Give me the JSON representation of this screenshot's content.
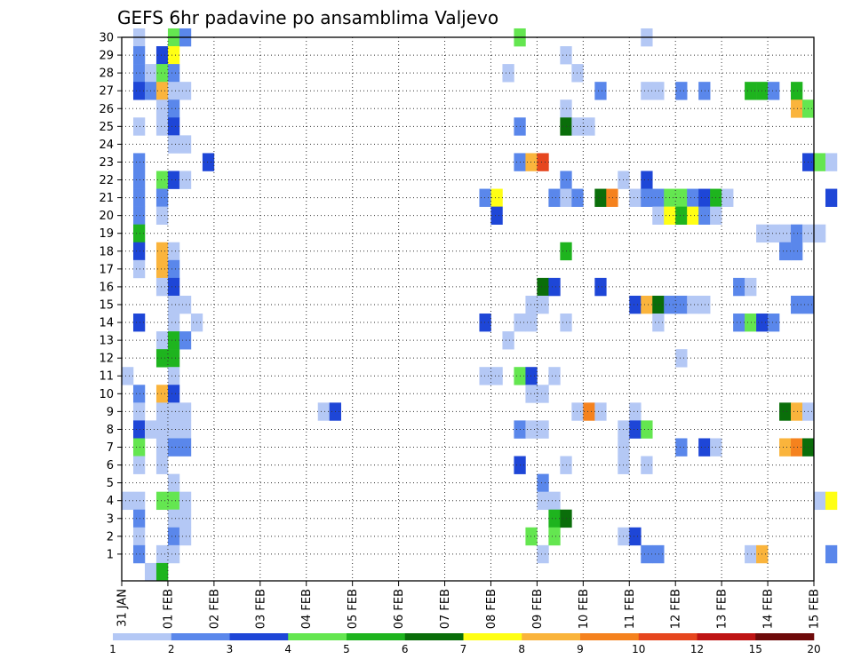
{
  "chart_data": {
    "type": "heatmap",
    "title": "GEFS 6hr padavine po ansamblima Valjevo",
    "xlabel": "",
    "ylabel": "",
    "x_ticks": [
      "31 JAN",
      "01 FEB",
      "02 FEB",
      "03 FEB",
      "04 FEB",
      "05 FEB",
      "06 FEB",
      "07 FEB",
      "08 FEB",
      "09 FEB",
      "10 FEB",
      "11 FEB",
      "12 FEB",
      "13 FEB",
      "14 FEB",
      "15 FEB"
    ],
    "y_ticks": [
      1,
      2,
      3,
      4,
      5,
      6,
      7,
      8,
      9,
      10,
      11,
      12,
      13,
      14,
      15,
      16,
      17,
      18,
      19,
      20,
      21,
      22,
      23,
      24,
      25,
      26,
      27,
      28,
      29,
      30
    ],
    "time_steps_per_day": 4,
    "grid": "dotted",
    "colorbar": {
      "position": "bottom",
      "labels": [
        "1",
        "2",
        "3",
        "4",
        "5",
        "6",
        "7",
        "8",
        "9",
        "10",
        "12",
        "15",
        "20"
      ],
      "colors": [
        "#b4c8f5",
        "#5a87eb",
        "#1e46d7",
        "#64e650",
        "#1eb41e",
        "#0a6e0a",
        "#ffff14",
        "#fab43c",
        "#f5821e",
        "#e6461e",
        "#be1414",
        "#6e0a0a"
      ]
    },
    "cells_format": "[time_index, member, color_index] (time_index 0 = 31 JAN 00h, 6-hour steps; color_index into colorbar.colors)",
    "cells": [
      [
        1,
        30,
        0
      ],
      [
        1,
        29,
        1
      ],
      [
        1,
        28,
        1
      ],
      [
        1,
        27,
        2
      ],
      [
        1,
        25,
        0
      ],
      [
        1,
        23,
        1
      ],
      [
        1,
        22,
        1
      ],
      [
        1,
        21,
        1
      ],
      [
        1,
        20,
        1
      ],
      [
        1,
        19,
        4
      ],
      [
        1,
        18,
        2
      ],
      [
        1,
        17,
        0
      ],
      [
        1,
        14,
        2
      ],
      [
        1,
        10,
        1
      ],
      [
        1,
        9,
        0
      ],
      [
        1,
        8,
        2
      ],
      [
        1,
        7,
        3
      ],
      [
        1,
        6,
        0
      ],
      [
        1,
        4,
        0
      ],
      [
        1,
        3,
        1
      ],
      [
        1,
        2,
        0
      ],
      [
        1,
        1,
        1
      ],
      [
        0,
        11,
        0
      ],
      [
        0,
        4,
        0
      ],
      [
        2,
        28,
        0
      ],
      [
        2,
        27,
        1
      ],
      [
        2,
        8,
        0
      ],
      [
        2,
        0,
        0
      ],
      [
        3,
        29,
        2
      ],
      [
        3,
        28,
        3
      ],
      [
        3,
        27,
        7
      ],
      [
        3,
        26,
        0
      ],
      [
        3,
        25,
        0
      ],
      [
        3,
        22,
        3
      ],
      [
        3,
        21,
        1
      ],
      [
        3,
        20,
        0
      ],
      [
        3,
        18,
        7
      ],
      [
        3,
        17,
        7
      ],
      [
        3,
        16,
        0
      ],
      [
        3,
        13,
        0
      ],
      [
        3,
        12,
        4
      ],
      [
        3,
        10,
        7
      ],
      [
        3,
        9,
        0
      ],
      [
        3,
        8,
        0
      ],
      [
        3,
        7,
        0
      ],
      [
        3,
        6,
        0
      ],
      [
        3,
        4,
        3
      ],
      [
        3,
        1,
        0
      ],
      [
        3,
        0,
        4
      ],
      [
        4,
        30,
        3
      ],
      [
        4,
        29,
        6
      ],
      [
        4,
        28,
        1
      ],
      [
        4,
        27,
        0
      ],
      [
        4,
        26,
        1
      ],
      [
        4,
        25,
        2
      ],
      [
        4,
        24,
        0
      ],
      [
        4,
        22,
        2
      ],
      [
        4,
        18,
        0
      ],
      [
        4,
        17,
        1
      ],
      [
        4,
        16,
        2
      ],
      [
        4,
        15,
        0
      ],
      [
        4,
        14,
        0
      ],
      [
        4,
        13,
        4
      ],
      [
        4,
        12,
        4
      ],
      [
        4,
        11,
        0
      ],
      [
        4,
        10,
        2
      ],
      [
        4,
        9,
        0
      ],
      [
        4,
        8,
        0
      ],
      [
        4,
        7,
        1
      ],
      [
        4,
        5,
        0
      ],
      [
        4,
        4,
        3
      ],
      [
        4,
        3,
        0
      ],
      [
        4,
        2,
        1
      ],
      [
        4,
        1,
        0
      ],
      [
        5,
        30,
        1
      ],
      [
        5,
        27,
        0
      ],
      [
        5,
        24,
        0
      ],
      [
        5,
        22,
        0
      ],
      [
        5,
        15,
        0
      ],
      [
        5,
        13,
        1
      ],
      [
        5,
        9,
        0
      ],
      [
        5,
        8,
        0
      ],
      [
        5,
        7,
        1
      ],
      [
        5,
        4,
        0
      ],
      [
        5,
        3,
        0
      ],
      [
        5,
        2,
        0
      ],
      [
        6,
        14,
        0
      ],
      [
        7,
        23,
        2
      ],
      [
        17,
        9,
        0
      ],
      [
        18,
        9,
        2
      ],
      [
        31,
        21,
        1
      ],
      [
        31,
        14,
        2
      ],
      [
        31,
        11,
        0
      ],
      [
        32,
        21,
        6
      ],
      [
        32,
        20,
        2
      ],
      [
        32,
        11,
        0
      ],
      [
        33,
        28,
        0
      ],
      [
        33,
        13,
        0
      ],
      [
        34,
        30,
        3
      ],
      [
        34,
        25,
        1
      ],
      [
        34,
        23,
        1
      ],
      [
        34,
        14,
        0
      ],
      [
        34,
        11,
        3
      ],
      [
        34,
        8,
        1
      ],
      [
        34,
        6,
        2
      ],
      [
        35,
        23,
        7
      ],
      [
        35,
        15,
        0
      ],
      [
        35,
        14,
        0
      ],
      [
        35,
        11,
        2
      ],
      [
        35,
        10,
        0
      ],
      [
        35,
        8,
        0
      ],
      [
        35,
        2,
        3
      ],
      [
        36,
        23,
        9
      ],
      [
        36,
        16,
        5
      ],
      [
        36,
        15,
        0
      ],
      [
        36,
        10,
        0
      ],
      [
        36,
        8,
        0
      ],
      [
        36,
        5,
        1
      ],
      [
        36,
        4,
        0
      ],
      [
        36,
        1,
        0
      ],
      [
        37,
        21,
        1
      ],
      [
        37,
        16,
        2
      ],
      [
        37,
        11,
        0
      ],
      [
        37,
        4,
        0
      ],
      [
        37,
        3,
        4
      ],
      [
        37,
        2,
        3
      ],
      [
        38,
        29,
        0
      ],
      [
        38,
        26,
        0
      ],
      [
        38,
        25,
        5
      ],
      [
        38,
        22,
        1
      ],
      [
        38,
        21,
        0
      ],
      [
        38,
        18,
        4
      ],
      [
        38,
        14,
        0
      ],
      [
        38,
        6,
        0
      ],
      [
        38,
        3,
        5
      ],
      [
        39,
        28,
        0
      ],
      [
        39,
        25,
        0
      ],
      [
        39,
        21,
        1
      ],
      [
        39,
        9,
        0
      ],
      [
        40,
        25,
        0
      ],
      [
        40,
        9,
        8
      ],
      [
        41,
        27,
        1
      ],
      [
        41,
        21,
        5
      ],
      [
        41,
        16,
        2
      ],
      [
        41,
        9,
        0
      ],
      [
        42,
        21,
        8
      ],
      [
        43,
        22,
        0
      ],
      [
        43,
        8,
        0
      ],
      [
        43,
        7,
        0
      ],
      [
        43,
        6,
        0
      ],
      [
        43,
        2,
        0
      ],
      [
        44,
        21,
        0
      ],
      [
        44,
        15,
        2
      ],
      [
        44,
        9,
        0
      ],
      [
        44,
        8,
        2
      ],
      [
        44,
        2,
        2
      ],
      [
        45,
        30,
        0
      ],
      [
        45,
        27,
        0
      ],
      [
        45,
        22,
        2
      ],
      [
        45,
        21,
        1
      ],
      [
        45,
        15,
        7
      ],
      [
        45,
        8,
        3
      ],
      [
        45,
        6,
        0
      ],
      [
        45,
        1,
        1
      ],
      [
        46,
        27,
        0
      ],
      [
        46,
        21,
        1
      ],
      [
        46,
        20,
        0
      ],
      [
        46,
        15,
        5
      ],
      [
        46,
        14,
        0
      ],
      [
        46,
        1,
        1
      ],
      [
        47,
        21,
        3
      ],
      [
        47,
        20,
        6
      ],
      [
        47,
        15,
        1
      ],
      [
        48,
        27,
        1
      ],
      [
        48,
        21,
        3
      ],
      [
        48,
        20,
        4
      ],
      [
        48,
        15,
        1
      ],
      [
        48,
        12,
        0
      ],
      [
        48,
        7,
        1
      ],
      [
        49,
        21,
        1
      ],
      [
        49,
        20,
        6
      ],
      [
        49,
        15,
        0
      ],
      [
        50,
        27,
        1
      ],
      [
        50,
        21,
        2
      ],
      [
        50,
        20,
        1
      ],
      [
        50,
        15,
        0
      ],
      [
        50,
        7,
        2
      ],
      [
        51,
        21,
        4
      ],
      [
        51,
        20,
        0
      ],
      [
        51,
        7,
        0
      ],
      [
        52,
        21,
        0
      ],
      [
        53,
        16,
        1
      ],
      [
        53,
        14,
        1
      ],
      [
        54,
        27,
        4
      ],
      [
        54,
        16,
        0
      ],
      [
        54,
        14,
        3
      ],
      [
        54,
        1,
        0
      ],
      [
        55,
        27,
        4
      ],
      [
        55,
        19,
        0
      ],
      [
        55,
        14,
        2
      ],
      [
        55,
        1,
        7
      ],
      [
        56,
        27,
        1
      ],
      [
        56,
        19,
        0
      ],
      [
        56,
        14,
        1
      ],
      [
        57,
        19,
        0
      ],
      [
        57,
        18,
        1
      ],
      [
        57,
        9,
        5
      ],
      [
        57,
        7,
        7
      ],
      [
        58,
        27,
        4
      ],
      [
        58,
        26,
        7
      ],
      [
        58,
        19,
        1
      ],
      [
        58,
        18,
        1
      ],
      [
        58,
        15,
        1
      ],
      [
        58,
        9,
        7
      ],
      [
        58,
        7,
        8
      ],
      [
        59,
        26,
        3
      ],
      [
        59,
        23,
        2
      ],
      [
        59,
        19,
        0
      ],
      [
        59,
        15,
        1
      ],
      [
        59,
        9,
        0
      ],
      [
        59,
        7,
        5
      ],
      [
        60,
        23,
        3
      ],
      [
        60,
        19,
        0
      ],
      [
        60,
        4,
        0
      ],
      [
        61,
        23,
        0
      ],
      [
        61,
        21,
        2
      ],
      [
        61,
        4,
        6
      ],
      [
        61,
        1,
        1
      ]
    ]
  }
}
